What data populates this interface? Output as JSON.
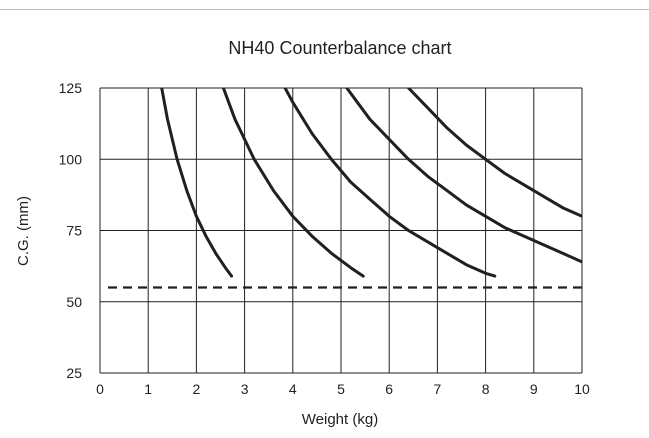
{
  "chart_data": {
    "type": "line",
    "title": "NH40 Counterbalance chart",
    "xlabel": "Weight (kg)",
    "ylabel": "C.G. (mm)",
    "xlim": [
      0,
      10
    ],
    "ylim": [
      25,
      125
    ],
    "x_ticks": [
      "0",
      "1",
      "2",
      "3",
      "4",
      "5",
      "6",
      "7",
      "8",
      "9",
      "10"
    ],
    "y_ticks": [
      "25",
      "50",
      "75",
      "100",
      "125"
    ],
    "grid": true,
    "legend": "none",
    "colors": {
      "line": "#231f20",
      "grid": "#231f20"
    },
    "series": [
      {
        "x": [
          1.28,
          1.4,
          1.6,
          1.8,
          2.0,
          2.2,
          2.4,
          2.6,
          2.73
        ],
        "y": [
          125,
          114,
          100,
          89,
          80,
          73,
          67,
          62,
          59
        ]
      },
      {
        "x": [
          2.56,
          2.8,
          3.0,
          3.2,
          3.6,
          4.0,
          4.4,
          4.8,
          5.2,
          5.46
        ],
        "y": [
          125,
          114,
          107,
          100,
          89,
          80,
          73,
          67,
          62,
          59
        ]
      },
      {
        "x": [
          3.84,
          4.0,
          4.4,
          4.8,
          5.2,
          5.6,
          6.0,
          6.4,
          6.8,
          7.2,
          7.6,
          8.0,
          8.19
        ],
        "y": [
          125,
          120,
          109,
          100,
          92,
          86,
          80,
          75,
          71,
          67,
          63,
          60,
          59
        ]
      },
      {
        "x": [
          5.12,
          5.6,
          6.0,
          6.4,
          6.8,
          7.2,
          7.6,
          8.0,
          8.4,
          8.8,
          9.2,
          9.6,
          10.0
        ],
        "y": [
          125,
          114,
          107,
          100,
          94,
          89,
          84,
          80,
          76,
          73,
          70,
          67,
          64
        ]
      },
      {
        "x": [
          6.4,
          6.8,
          7.2,
          7.6,
          8.0,
          8.4,
          8.8,
          9.2,
          9.6,
          10.0
        ],
        "y": [
          125,
          118,
          111,
          105,
          100,
          95,
          91,
          87,
          83,
          80
        ]
      }
    ],
    "reference_line": {
      "y": 55,
      "style": "dashed"
    }
  }
}
